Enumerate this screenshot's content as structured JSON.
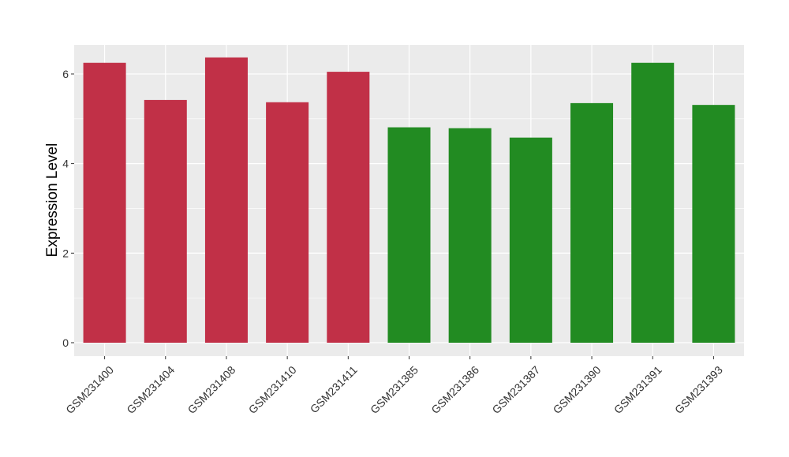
{
  "chart_data": {
    "type": "bar",
    "title": "",
    "xlabel": "",
    "ylabel": "Expression Level",
    "categories": [
      "GSM231400",
      "GSM231404",
      "GSM231408",
      "GSM231410",
      "GSM231411",
      "GSM231385",
      "GSM231386",
      "GSM231387",
      "GSM231390",
      "GSM231391",
      "GSM231393"
    ],
    "values": [
      6.25,
      5.42,
      6.37,
      5.37,
      6.05,
      4.81,
      4.79,
      4.58,
      5.35,
      6.25,
      5.31
    ],
    "groups": [
      "group1",
      "group1",
      "group1",
      "group1",
      "group1",
      "group2",
      "group2",
      "group2",
      "group2",
      "group2",
      "group2"
    ],
    "group_colors": {
      "group1": "#C13047",
      "group2": "#228B22"
    },
    "ylim": [
      -0.3,
      6.65
    ],
    "y_ticks": [
      0,
      2,
      4,
      6
    ],
    "grid": true,
    "panel_background": "#EBEBEB",
    "grid_color": "#FFFFFF",
    "legend": "none"
  }
}
